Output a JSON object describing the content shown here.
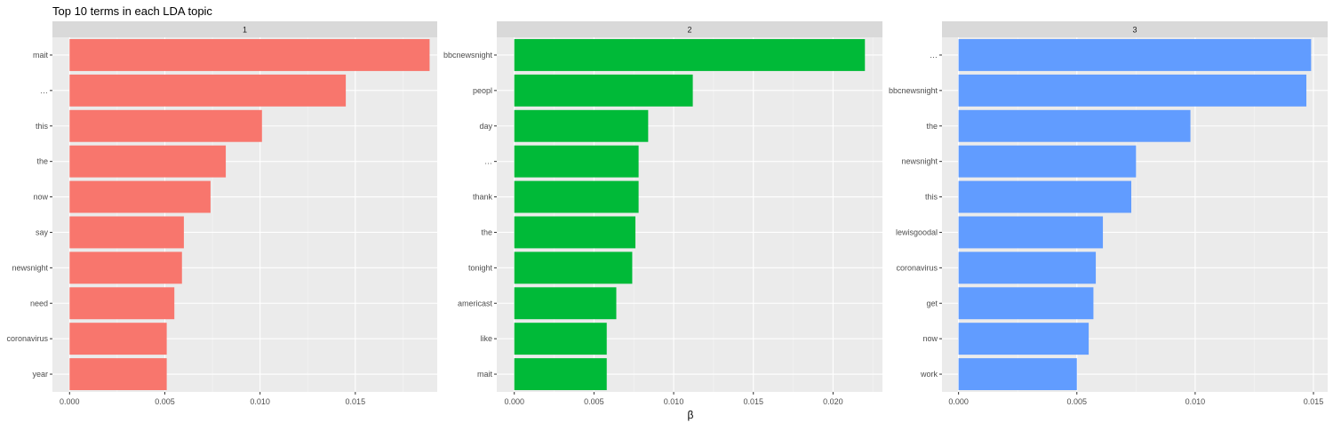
{
  "chart_data": {
    "type": "bar",
    "orientation": "horizontal",
    "title": "Top 10 terms in each LDA topic",
    "xlabel": "β",
    "ylabel": "",
    "grid": true,
    "panels": [
      {
        "strip": "1",
        "xlim": [
          -0.0009,
          0.0193
        ],
        "xticks": [
          0,
          0.005,
          0.01,
          0.015
        ],
        "xtick_labels": [
          "0.000",
          "0.005",
          "0.010",
          "0.015"
        ],
        "color": "#F8766D",
        "categories": [
          "mait",
          "…",
          "this",
          "the",
          "now",
          "say",
          "newsnight",
          "need",
          "coronavirus",
          "year"
        ],
        "values": [
          0.0189,
          0.0145,
          0.0101,
          0.0082,
          0.0074,
          0.006,
          0.0059,
          0.0055,
          0.0051,
          0.0051
        ]
      },
      {
        "strip": "2",
        "xlim": [
          -0.0011,
          0.0231
        ],
        "xticks": [
          0,
          0.005,
          0.01,
          0.015,
          0.02
        ],
        "xtick_labels": [
          "0.000",
          "0.005",
          "0.010",
          "0.015",
          "0.020"
        ],
        "color": "#00BA38",
        "categories": [
          "bbcnewsnight",
          "peopl",
          "day",
          "…",
          "thank",
          "the",
          "tonight",
          "americast",
          "like",
          "mait"
        ],
        "values": [
          0.022,
          0.0112,
          0.0084,
          0.0078,
          0.0078,
          0.0076,
          0.0074,
          0.0064,
          0.0058,
          0.0058
        ]
      },
      {
        "strip": "3",
        "xlim": [
          -0.0007,
          0.0156
        ],
        "xticks": [
          0,
          0.005,
          0.01,
          0.015
        ],
        "xtick_labels": [
          "0.000",
          "0.005",
          "0.010",
          "0.015"
        ],
        "color": "#619CFF",
        "categories": [
          "…",
          "bbcnewsnight",
          "the",
          "newsnight",
          "this",
          "lewisgoodal",
          "coronavirus",
          "get",
          "now",
          "work"
        ],
        "values": [
          0.0149,
          0.0147,
          0.0098,
          0.0075,
          0.0073,
          0.0061,
          0.0058,
          0.0057,
          0.0055,
          0.005
        ]
      }
    ]
  }
}
